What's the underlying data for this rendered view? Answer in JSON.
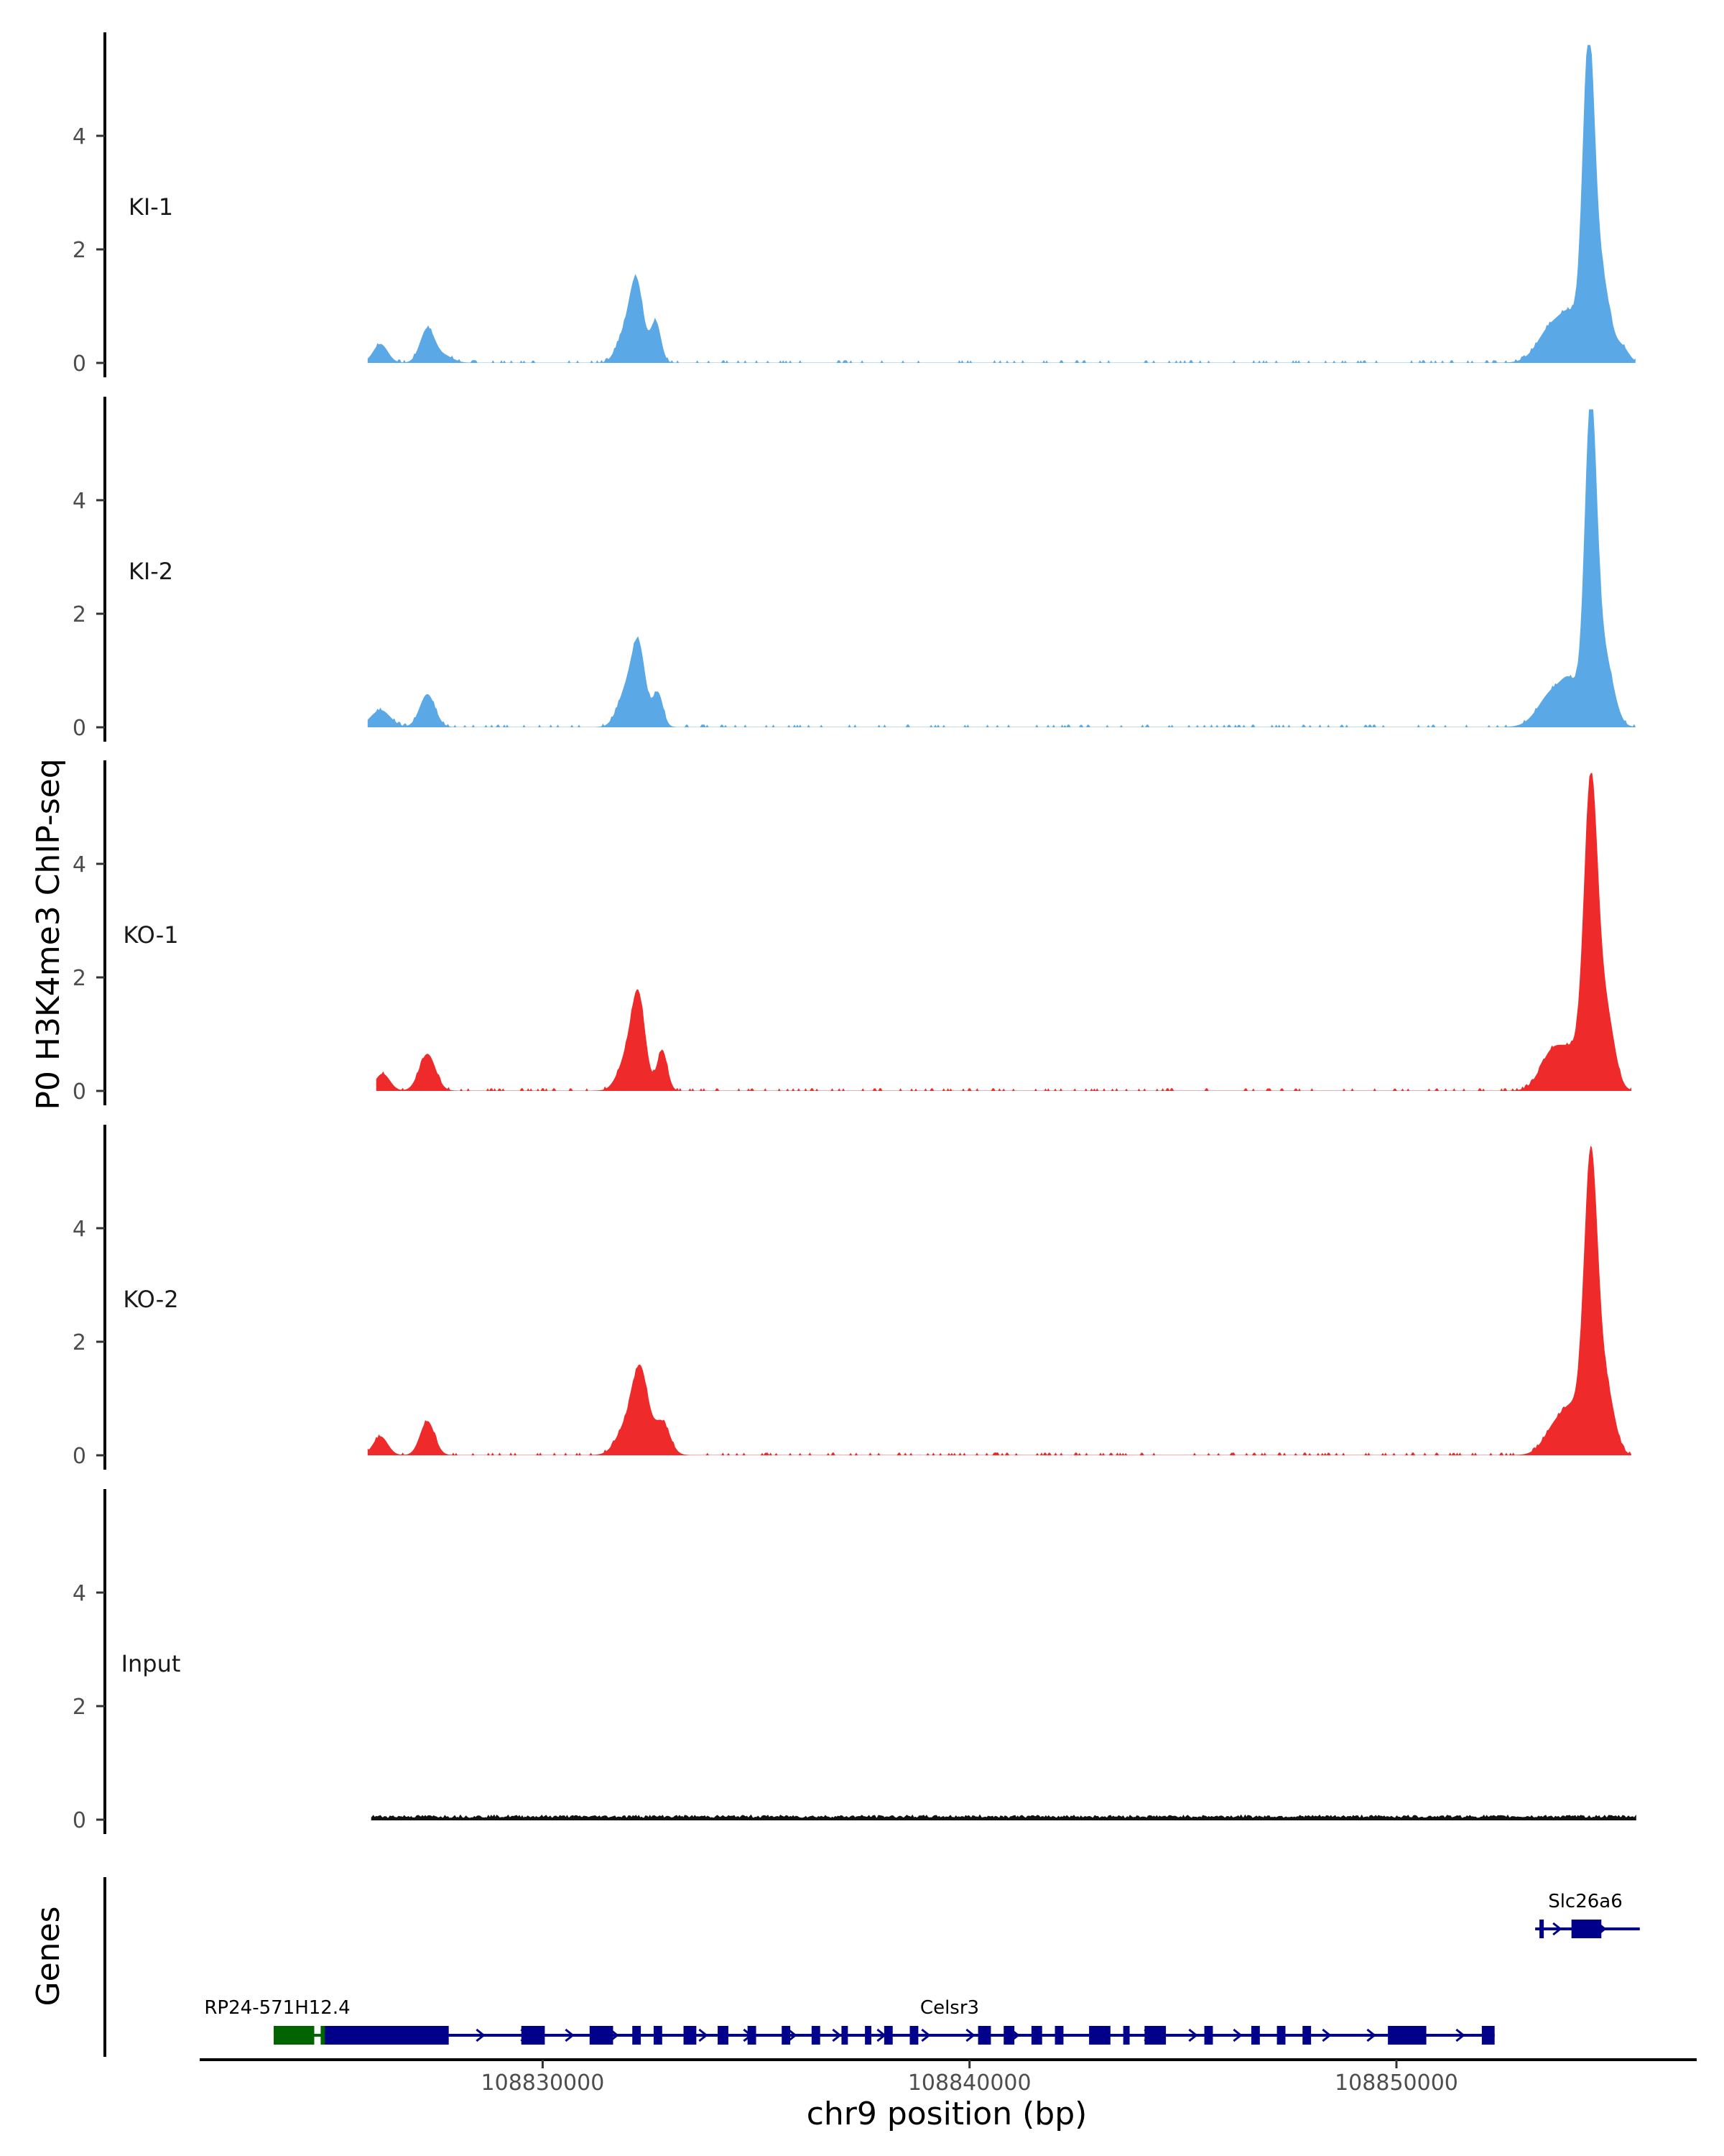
{
  "chart_data": {
    "type": "area",
    "title": "",
    "ylabel": "P0 H3K4me3 ChIP-seq",
    "xlabel": "chr9 position (bp)",
    "xlim": [
      108822000,
      108857000
    ],
    "ylim": [
      0,
      5.6
    ],
    "yticks": [
      0,
      2,
      4
    ],
    "xticks": [
      108830000,
      108840000,
      108850000
    ],
    "tracks": [
      {
        "name": "KI-1",
        "color": "#5aa9e6",
        "peaks": [
          [
            108826200,
            0.33,
            170
          ],
          [
            108827300,
            0.6,
            170
          ],
          [
            108827700,
            0.12,
            200
          ],
          [
            108831900,
            0.45,
            180
          ],
          [
            108832200,
            1.4,
            160
          ],
          [
            108832650,
            0.72,
            120
          ],
          [
            108853700,
            0.7,
            350
          ],
          [
            108854100,
            0.5,
            200
          ],
          [
            108854500,
            5.3,
            140
          ],
          [
            108854800,
            1.5,
            200
          ],
          [
            108855300,
            0.25,
            150
          ]
        ],
        "range": [
          108825900,
          108855600
        ]
      },
      {
        "name": "KI-2",
        "color": "#5aa9e6",
        "peaks": [
          [
            108826200,
            0.3,
            230
          ],
          [
            108827300,
            0.58,
            180
          ],
          [
            108831950,
            0.6,
            200
          ],
          [
            108832250,
            1.35,
            160
          ],
          [
            108832700,
            0.6,
            120
          ],
          [
            108853700,
            0.65,
            350
          ],
          [
            108854100,
            0.5,
            200
          ],
          [
            108854550,
            5.35,
            140
          ],
          [
            108854850,
            1.3,
            220
          ]
        ],
        "range": [
          108825900,
          108855600
        ]
      },
      {
        "name": "KO-1",
        "color": "#ee2a2a",
        "peaks": [
          [
            108826250,
            0.3,
            170
          ],
          [
            108827300,
            0.65,
            190
          ],
          [
            108832000,
            0.6,
            220
          ],
          [
            108832250,
            1.45,
            160
          ],
          [
            108832800,
            0.72,
            120
          ],
          [
            108853700,
            0.75,
            300
          ],
          [
            108854150,
            0.45,
            200
          ],
          [
            108854550,
            5.3,
            160
          ],
          [
            108854900,
            1.4,
            200
          ]
        ],
        "range": [
          108826100,
          108855500
        ]
      },
      {
        "name": "KO-2",
        "color": "#ee2a2a",
        "peaks": [
          [
            108826200,
            0.33,
            170
          ],
          [
            108827300,
            0.6,
            170
          ],
          [
            108832000,
            0.55,
            250
          ],
          [
            108832300,
            1.3,
            180
          ],
          [
            108832800,
            0.58,
            180
          ],
          [
            108853800,
            0.6,
            300
          ],
          [
            108854150,
            0.5,
            200
          ],
          [
            108854550,
            5.1,
            160
          ],
          [
            108854900,
            1.2,
            200
          ]
        ],
        "range": [
          108825900,
          108855500
        ]
      },
      {
        "name": "Input",
        "color": "#111111",
        "peaks": [],
        "range": [
          108826000,
          108855600
        ]
      }
    ],
    "genes_track_label": "Genes",
    "genes": [
      {
        "name": "RP24-571H12.4",
        "color": "#006400",
        "start": 108823700,
        "end": 108825000,
        "exons": [
          [
            108823700,
            108824650
          ],
          [
            108824800,
            108825000
          ]
        ]
      },
      {
        "name": "Celsr3",
        "color": "#00008b",
        "start": 108824900,
        "end": 108852300,
        "exons": [
          [
            108824900,
            108827800
          ],
          [
            108829500,
            108830050
          ],
          [
            108831100,
            108831650
          ],
          [
            108832100,
            108832300
          ],
          [
            108832600,
            108832800
          ],
          [
            108833300,
            108833600
          ],
          [
            108834100,
            108834350
          ],
          [
            108834800,
            108835000
          ],
          [
            108835600,
            108835800
          ],
          [
            108836300,
            108836500
          ],
          [
            108837000,
            108837150
          ],
          [
            108837550,
            108837700
          ],
          [
            108838000,
            108838200
          ],
          [
            108838600,
            108838800
          ],
          [
            108840200,
            108840500
          ],
          [
            108840800,
            108841050
          ],
          [
            108841450,
            108841700
          ],
          [
            108842000,
            108842200
          ],
          [
            108842800,
            108843300
          ],
          [
            108843600,
            108843750
          ],
          [
            108844100,
            108844600
          ],
          [
            108845500,
            108845700
          ],
          [
            108846600,
            108846800
          ],
          [
            108847200,
            108847400
          ],
          [
            108847800,
            108848000
          ],
          [
            108849800,
            108850700
          ],
          [
            108852000,
            108852300
          ]
        ]
      },
      {
        "name": "Slc26a6",
        "color": "#00008b",
        "start": 108853250,
        "end": 108855700,
        "exons": [
          [
            108853350,
            108853450
          ],
          [
            108854100,
            108854800
          ]
        ]
      }
    ]
  }
}
